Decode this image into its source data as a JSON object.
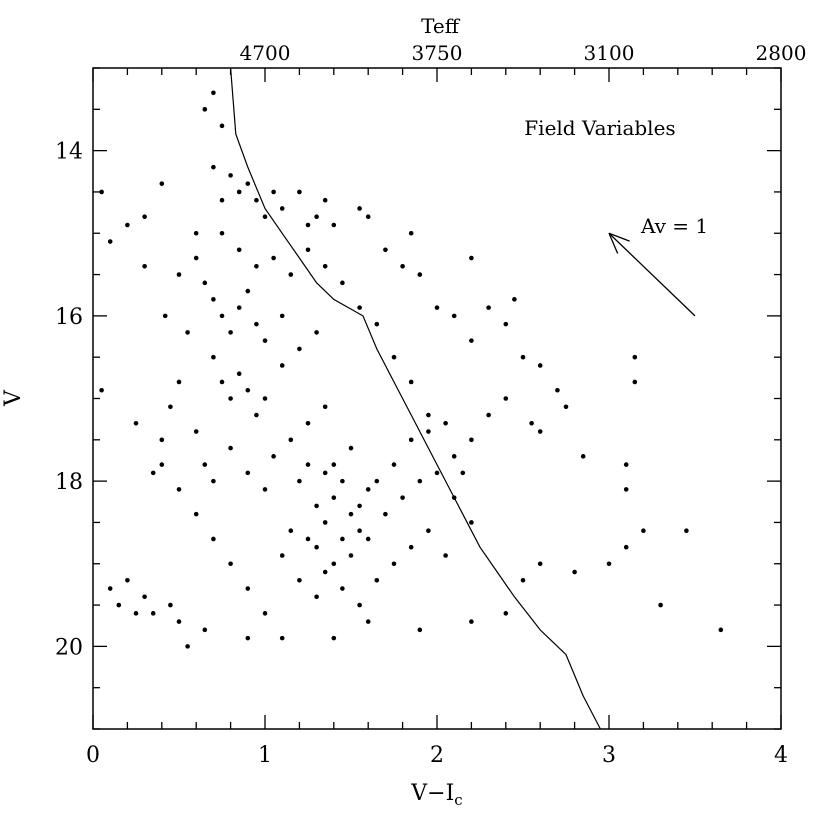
{
  "chart_data": {
    "type": "scatter",
    "title": "Field Variables",
    "xlabel": "V−I",
    "xlabel_sub": "c",
    "ylabel": "V",
    "top_axis_label": "Teff",
    "xlim": [
      0,
      4
    ],
    "ylim": [
      21,
      13.0
    ],
    "y_inverted": true,
    "x_ticks": [
      "0",
      "1",
      "2",
      "3",
      "4"
    ],
    "y_ticks": [
      "14",
      "16",
      "18",
      "20"
    ],
    "top_ticks": [
      {
        "x": 1.0,
        "label": "4700"
      },
      {
        "x": 2.0,
        "label": "3750"
      },
      {
        "x": 3.0,
        "label": "3100"
      },
      {
        "x": 4.0,
        "label": "2800"
      }
    ],
    "reddening_vector": {
      "label": "Av = 1",
      "from": [
        3.5,
        16.0
      ],
      "to": [
        3.0,
        15.0
      ]
    },
    "isochrone": [
      [
        0.8,
        13.0
      ],
      [
        0.83,
        13.8
      ],
      [
        0.9,
        14.2
      ],
      [
        1.0,
        14.7
      ],
      [
        1.1,
        15.0
      ],
      [
        1.2,
        15.3
      ],
      [
        1.3,
        15.6
      ],
      [
        1.4,
        15.8
      ],
      [
        1.57,
        16.0
      ],
      [
        1.65,
        16.4
      ],
      [
        1.75,
        16.8
      ],
      [
        1.85,
        17.2
      ],
      [
        1.95,
        17.6
      ],
      [
        2.05,
        18.0
      ],
      [
        2.15,
        18.4
      ],
      [
        2.25,
        18.8
      ],
      [
        2.35,
        19.1
      ],
      [
        2.45,
        19.4
      ],
      [
        2.6,
        19.8
      ],
      [
        2.75,
        20.1
      ],
      [
        2.85,
        20.6
      ],
      [
        2.95,
        21.0
      ]
    ],
    "points": [
      [
        0.05,
        14.5
      ],
      [
        0.1,
        15.1
      ],
      [
        0.3,
        14.8
      ],
      [
        0.4,
        14.4
      ],
      [
        0.5,
        15.5
      ],
      [
        0.6,
        15.0
      ],
      [
        0.7,
        14.2
      ],
      [
        0.75,
        14.6
      ],
      [
        0.8,
        14.3
      ],
      [
        0.85,
        14.5
      ],
      [
        0.9,
        14.4
      ],
      [
        0.95,
        14.6
      ],
      [
        1.0,
        14.8
      ],
      [
        1.05,
        14.5
      ],
      [
        1.1,
        14.7
      ],
      [
        1.2,
        14.5
      ],
      [
        1.3,
        14.8
      ],
      [
        1.4,
        14.9
      ],
      [
        1.55,
        14.7
      ],
      [
        1.6,
        14.8
      ],
      [
        0.65,
        13.5
      ],
      [
        0.7,
        13.3
      ],
      [
        0.75,
        13.7
      ],
      [
        1.7,
        15.2
      ],
      [
        1.8,
        15.4
      ],
      [
        1.9,
        15.5
      ],
      [
        2.0,
        15.9
      ],
      [
        2.1,
        16.0
      ],
      [
        2.2,
        16.3
      ],
      [
        2.3,
        15.9
      ],
      [
        2.4,
        16.1
      ],
      [
        2.5,
        16.5
      ],
      [
        2.6,
        16.6
      ],
      [
        2.7,
        16.9
      ],
      [
        2.75,
        17.1
      ],
      [
        2.45,
        15.8
      ],
      [
        2.2,
        15.3
      ],
      [
        1.85,
        15.0
      ],
      [
        1.35,
        14.6
      ],
      [
        1.25,
        14.9
      ],
      [
        0.6,
        15.3
      ],
      [
        0.65,
        15.6
      ],
      [
        0.7,
        15.8
      ],
      [
        0.75,
        16.0
      ],
      [
        0.8,
        16.2
      ],
      [
        0.85,
        15.9
      ],
      [
        0.9,
        15.7
      ],
      [
        0.95,
        16.1
      ],
      [
        1.0,
        16.3
      ],
      [
        1.1,
        16.0
      ],
      [
        0.7,
        16.5
      ],
      [
        0.75,
        16.8
      ],
      [
        0.8,
        17.0
      ],
      [
        0.85,
        16.7
      ],
      [
        0.9,
        16.9
      ],
      [
        0.95,
        17.2
      ],
      [
        1.0,
        17.0
      ],
      [
        1.1,
        16.6
      ],
      [
        1.2,
        16.4
      ],
      [
        1.3,
        16.2
      ],
      [
        0.6,
        17.4
      ],
      [
        0.65,
        17.8
      ],
      [
        0.7,
        18.0
      ],
      [
        0.8,
        17.6
      ],
      [
        0.9,
        17.9
      ],
      [
        1.0,
        18.1
      ],
      [
        1.05,
        17.7
      ],
      [
        1.15,
        17.5
      ],
      [
        1.25,
        17.3
      ],
      [
        1.35,
        17.1
      ],
      [
        1.2,
        18.0
      ],
      [
        1.3,
        18.3
      ],
      [
        1.35,
        18.5
      ],
      [
        1.4,
        18.2
      ],
      [
        1.45,
        18.0
      ],
      [
        1.5,
        18.4
      ],
      [
        1.55,
        18.6
      ],
      [
        1.6,
        18.1
      ],
      [
        1.4,
        17.8
      ],
      [
        1.5,
        17.6
      ],
      [
        1.3,
        18.8
      ],
      [
        1.4,
        19.0
      ],
      [
        1.5,
        18.9
      ],
      [
        1.6,
        18.7
      ],
      [
        1.7,
        18.4
      ],
      [
        1.8,
        18.2
      ],
      [
        1.9,
        18.0
      ],
      [
        2.0,
        17.9
      ],
      [
        2.1,
        18.2
      ],
      [
        2.2,
        18.5
      ],
      [
        1.1,
        18.9
      ],
      [
        1.2,
        19.2
      ],
      [
        1.3,
        19.4
      ],
      [
        1.0,
        19.6
      ],
      [
        0.9,
        19.3
      ],
      [
        0.8,
        19.0
      ],
      [
        0.7,
        18.7
      ],
      [
        0.6,
        18.4
      ],
      [
        0.5,
        18.1
      ],
      [
        0.4,
        17.8
      ],
      [
        0.1,
        19.3
      ],
      [
        0.15,
        19.5
      ],
      [
        0.2,
        19.2
      ],
      [
        0.25,
        19.6
      ],
      [
        0.3,
        19.4
      ],
      [
        0.35,
        19.6
      ],
      [
        0.45,
        19.5
      ],
      [
        0.5,
        19.7
      ],
      [
        0.55,
        20.0
      ],
      [
        0.65,
        19.8
      ],
      [
        0.9,
        19.9
      ],
      [
        1.1,
        19.9
      ],
      [
        1.4,
        19.9
      ],
      [
        1.6,
        19.7
      ],
      [
        1.9,
        19.8
      ],
      [
        2.2,
        19.7
      ],
      [
        2.4,
        19.6
      ],
      [
        2.5,
        19.2
      ],
      [
        2.6,
        19.0
      ],
      [
        2.8,
        19.1
      ],
      [
        3.0,
        19.0
      ],
      [
        3.1,
        18.8
      ],
      [
        3.2,
        18.6
      ],
      [
        3.45,
        18.6
      ],
      [
        3.3,
        19.5
      ],
      [
        3.65,
        19.8
      ],
      [
        3.1,
        18.1
      ],
      [
        3.1,
        17.8
      ],
      [
        2.85,
        17.7
      ],
      [
        2.6,
        17.4
      ],
      [
        3.15,
        16.5
      ],
      [
        3.15,
        16.8
      ],
      [
        2.55,
        17.3
      ],
      [
        2.4,
        17.0
      ],
      [
        2.3,
        17.2
      ],
      [
        2.2,
        17.5
      ],
      [
        2.1,
        17.7
      ],
      [
        1.95,
        17.2
      ],
      [
        1.85,
        16.8
      ],
      [
        1.75,
        16.5
      ],
      [
        1.65,
        16.1
      ],
      [
        1.55,
        15.9
      ],
      [
        1.45,
        15.6
      ],
      [
        1.35,
        15.4
      ],
      [
        1.25,
        15.2
      ],
      [
        1.15,
        15.5
      ],
      [
        1.05,
        15.3
      ],
      [
        0.95,
        15.4
      ],
      [
        0.85,
        15.2
      ],
      [
        0.75,
        15.0
      ],
      [
        1.25,
        17.8
      ],
      [
        1.35,
        17.9
      ],
      [
        1.45,
        18.7
      ],
      [
        1.55,
        18.3
      ],
      [
        1.65,
        18.0
      ],
      [
        1.75,
        17.8
      ],
      [
        1.85,
        17.5
      ],
      [
        1.95,
        17.4
      ],
      [
        2.05,
        17.3
      ],
      [
        2.15,
        17.9
      ],
      [
        1.15,
        18.6
      ],
      [
        1.25,
        18.7
      ],
      [
        1.35,
        19.1
      ],
      [
        1.45,
        19.3
      ],
      [
        1.55,
        19.5
      ],
      [
        1.65,
        19.2
      ],
      [
        1.75,
        19.0
      ],
      [
        1.85,
        18.8
      ],
      [
        1.95,
        18.6
      ],
      [
        2.05,
        18.9
      ],
      [
        0.55,
        16.2
      ],
      [
        0.5,
        16.8
      ],
      [
        0.45,
        17.1
      ],
      [
        0.4,
        17.5
      ],
      [
        0.35,
        17.9
      ],
      [
        0.25,
        17.3
      ],
      [
        0.42,
        16.0
      ],
      [
        0.3,
        15.4
      ],
      [
        0.2,
        14.9
      ],
      [
        0.05,
        16.9
      ]
    ]
  }
}
